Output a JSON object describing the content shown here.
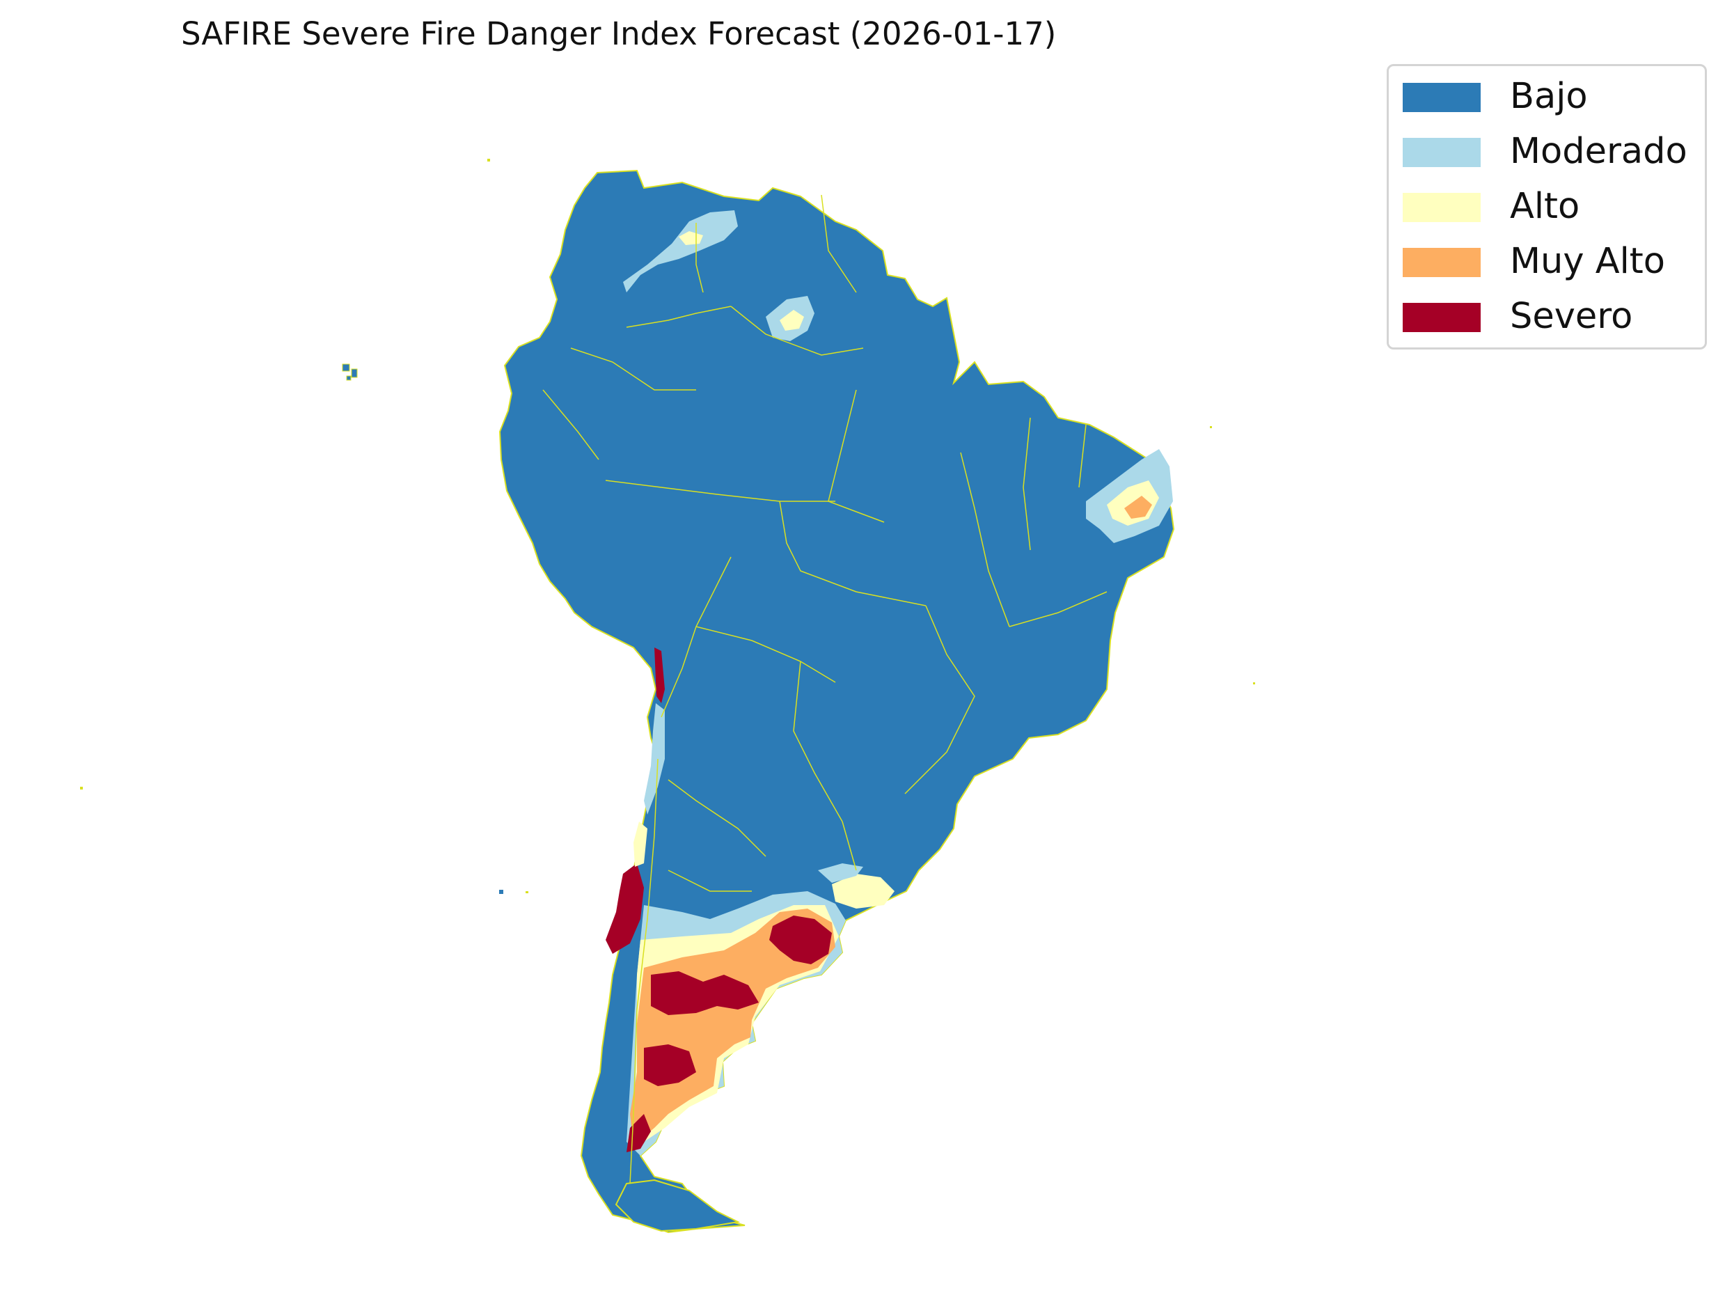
{
  "title": "SAFIRE Severe Fire Danger Index Forecast (2026-01-17)",
  "legend": {
    "items": [
      {
        "label": "Bajo",
        "color": "#2c7bb6"
      },
      {
        "label": "Moderado",
        "color": "#abd9e9"
      },
      {
        "label": "Alto",
        "color": "#ffffbf"
      },
      {
        "label": "Muy Alto",
        "color": "#fdae61"
      },
      {
        "label": "Severo",
        "color": "#a50026"
      }
    ]
  },
  "map": {
    "region": "South America",
    "land_color": "#2c7bb6",
    "border_color": "#d9e021"
  }
}
